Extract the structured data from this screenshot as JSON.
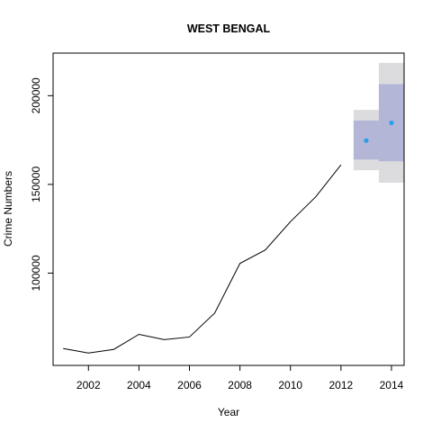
{
  "chart_data": {
    "type": "line",
    "title": "WEST BENGAL",
    "xlabel": "Year",
    "ylabel": "Crime Numbers",
    "xlim": [
      2000.6,
      2014.5
    ],
    "ylim": [
      48000,
      224000
    ],
    "x_ticks": [
      2002,
      2004,
      2006,
      2008,
      2010,
      2012,
      2014
    ],
    "y_ticks": [
      100000,
      150000,
      200000
    ],
    "grid": false,
    "legend": "none",
    "series": [
      {
        "x": [
          2001,
          2002,
          2003,
          2004,
          2005,
          2006,
          2007,
          2008,
          2009,
          2010,
          2011,
          2012
        ],
        "values": [
          57500,
          55000,
          57000,
          65500,
          62500,
          64000,
          77500,
          105500,
          113000,
          129000,
          143000,
          161000
        ]
      }
    ],
    "forecast": {
      "x": [
        2013,
        2014
      ],
      "mean": [
        174700,
        184700
      ],
      "lo80": [
        164000,
        163000
      ],
      "hi80": [
        186000,
        206500
      ],
      "lo95": [
        158000,
        151000
      ],
      "hi95": [
        192000,
        218500
      ]
    },
    "colors": {
      "line": "#000000",
      "point": "#2a9fe8",
      "band80": "#b3b6d7",
      "band95": "#dcdcdf"
    }
  }
}
